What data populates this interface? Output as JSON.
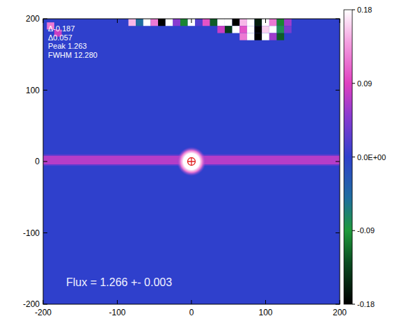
{
  "chart_data": {
    "type": "heatmap",
    "xlim": [
      -200,
      200
    ],
    "ylim": [
      -200,
      200
    ],
    "xticks": [
      -200,
      -100,
      0,
      100,
      200
    ],
    "yticks": [
      -200,
      -100,
      0,
      100,
      200
    ],
    "annotations": [
      "Δ-0.187",
      "Δ0.057",
      "Peak 1.263",
      "FWHM 12.280"
    ],
    "flux_label": "Flux = 1.266 +- 0.003",
    "background": 0,
    "streak": {
      "y": 2,
      "width": 12,
      "value": 0.07
    },
    "source": {
      "x": 0,
      "y": 0,
      "peak": 1.263,
      "fwhm": 12.28
    },
    "noise": {
      "x": [
        -80,
        -70,
        -60,
        -50,
        -40,
        -30,
        -20,
        -10,
        0,
        10,
        20,
        30,
        40,
        50,
        60,
        70,
        80,
        90,
        100,
        110,
        120,
        130,
        40,
        50,
        60,
        70,
        80,
        90,
        100,
        110,
        120,
        130,
        70,
        80,
        90,
        100,
        110,
        120,
        -190,
        -180
      ],
      "y": [
        195,
        195,
        195,
        195,
        195,
        195,
        195,
        195,
        195,
        195,
        195,
        195,
        195,
        195,
        195,
        195,
        195,
        195,
        195,
        195,
        195,
        195,
        185,
        185,
        185,
        185,
        185,
        185,
        185,
        185,
        185,
        185,
        175,
        175,
        175,
        175,
        175,
        175,
        190,
        180
      ],
      "values": [
        0.15,
        -0.05,
        0.18,
        0.12,
        -0.18,
        0.18,
        0.05,
        -0.1,
        0.18,
        0.02,
        0.1,
        -0.12,
        0.18,
        0.18,
        -0.18,
        0.15,
        0.18,
        -0.16,
        0.18,
        0.12,
        -0.1,
        0.06,
        0.08,
        -0.14,
        0.18,
        0.1,
        0.18,
        -0.18,
        0.16,
        0.18,
        -0.08,
        0.04,
        0.12,
        0.18,
        -0.18,
        0.18,
        0.06,
        -0.12,
        0.12,
        0.08
      ]
    },
    "colorbar": {
      "range": [
        -0.18,
        0.18
      ],
      "ticks": [
        -0.18,
        -0.09,
        {
          "value": 0,
          "label": "0.0E+00"
        },
        0.09,
        0.18
      ]
    }
  }
}
